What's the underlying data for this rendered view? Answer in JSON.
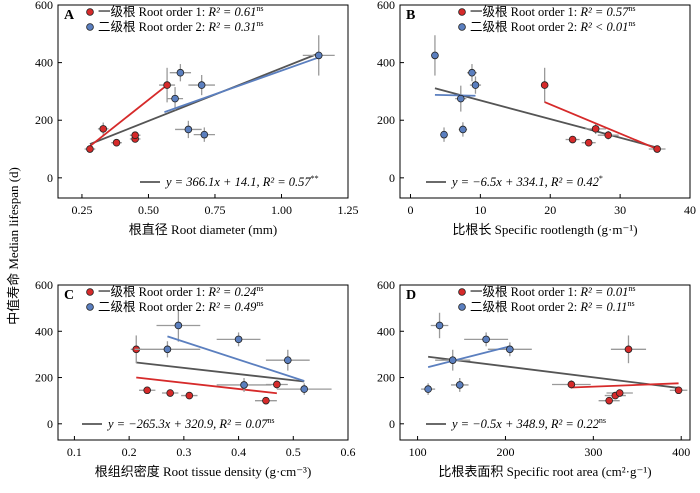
{
  "y_axis_label": "中值寿命 Median lifespan (d)",
  "chart_data": [
    {
      "type": "scatter",
      "panel": "A",
      "xlabel": "根直径 Root diameter (mm)",
      "xlim": [
        0.16,
        1.25
      ],
      "ylim": [
        -70,
        600
      ],
      "xticks": [
        0.25,
        0.5,
        0.75,
        1.0,
        1.25
      ],
      "xtick_labels": [
        "0.25",
        "0.50",
        "0.75",
        "1.00",
        "1.25"
      ],
      "yticks": [
        0,
        200,
        400,
        600
      ],
      "legend": [
        {
          "series": "order1",
          "text": "一级根 Root order 1: ",
          "r2": "R² = 0.61",
          "sig": "ns"
        },
        {
          "series": "order2",
          "text": "二级根 Root order 2: ",
          "r2": "R² = 0.31",
          "sig": "ns"
        }
      ],
      "equation": {
        "text": "y = 366.1x + 14.1, R² = 0.57",
        "sig": "**"
      },
      "series": [
        {
          "name": "order1",
          "color": "#d62a2a",
          "points": [
            {
              "x": 0.28,
              "y": 100,
              "ex": 0.02,
              "ey": 8
            },
            {
              "x": 0.33,
              "y": 170,
              "ex": 0.02,
              "ey": 22
            },
            {
              "x": 0.38,
              "y": 122,
              "ex": 0.02,
              "ey": 12
            },
            {
              "x": 0.45,
              "y": 135,
              "ex": 0.02,
              "ey": 12
            },
            {
              "x": 0.45,
              "y": 148,
              "ex": 0.02,
              "ey": 12
            },
            {
              "x": 0.57,
              "y": 322,
              "ex": 0.03,
              "ey": 60
            }
          ],
          "line": [
            [
              0.28,
              110
            ],
            [
              0.57,
              322
            ]
          ]
        },
        {
          "name": "order2",
          "color": "#5b7fbf",
          "points": [
            {
              "x": 0.6,
              "y": 275,
              "ex": 0.03,
              "ey": 40
            },
            {
              "x": 0.62,
              "y": 365,
              "ex": 0.04,
              "ey": 30
            },
            {
              "x": 0.65,
              "y": 168,
              "ex": 0.05,
              "ey": 30
            },
            {
              "x": 0.7,
              "y": 322,
              "ex": 0.05,
              "ey": 35
            },
            {
              "x": 0.71,
              "y": 150,
              "ex": 0.04,
              "ey": 25
            },
            {
              "x": 1.14,
              "y": 425,
              "ex": 0.06,
              "ey": 70
            }
          ],
          "line": [
            [
              0.56,
              228
            ],
            [
              1.14,
              418
            ]
          ]
        }
      ],
      "overall_line": [
        [
          0.28,
          117
        ],
        [
          1.14,
          432
        ]
      ]
    },
    {
      "type": "scatter",
      "panel": "B",
      "xlabel": "比根长 Specific rootlength (g·m⁻¹)",
      "xlim": [
        -1.5,
        40
      ],
      "ylim": [
        -70,
        600
      ],
      "xticks": [
        0,
        10,
        20,
        30,
        40
      ],
      "xtick_labels": [
        "0",
        "10",
        "20",
        "30",
        "40"
      ],
      "yticks": [
        0,
        200,
        400,
        600
      ],
      "legend": [
        {
          "series": "order1",
          "text": "一级根 Root order 1: ",
          "r2": "R² = 0.57",
          "sig": "ns"
        },
        {
          "series": "order2",
          "text": "二级根 Root order 2: ",
          "r2": "R² < 0.01",
          "sig": "ns"
        }
      ],
      "equation": {
        "text": "y = −6.5x + 334.1, R² = 0.42",
        "sig": "*"
      },
      "series": [
        {
          "name": "order1",
          "color": "#d62a2a",
          "points": [
            {
              "x": 19.2,
              "y": 322,
              "ex": 0.5,
              "ey": 60
            },
            {
              "x": 23.2,
              "y": 133,
              "ex": 1.0,
              "ey": 10
            },
            {
              "x": 25.5,
              "y": 122,
              "ex": 1.0,
              "ey": 10
            },
            {
              "x": 26.5,
              "y": 170,
              "ex": 1.5,
              "ey": 18
            },
            {
              "x": 28.3,
              "y": 148,
              "ex": 1.5,
              "ey": 15
            },
            {
              "x": 35.3,
              "y": 100,
              "ex": 1.2,
              "ey": 8
            }
          ],
          "line": [
            [
              19.2,
              263
            ],
            [
              35.3,
              100
            ]
          ]
        },
        {
          "name": "order2",
          "color": "#5b7fbf",
          "points": [
            {
              "x": 3.5,
              "y": 425,
              "ex": 0.5,
              "ey": 70
            },
            {
              "x": 4.8,
              "y": 150,
              "ex": 0.5,
              "ey": 25
            },
            {
              "x": 7.2,
              "y": 275,
              "ex": 0.8,
              "ey": 45
            },
            {
              "x": 7.5,
              "y": 168,
              "ex": 0.6,
              "ey": 25
            },
            {
              "x": 8.8,
              "y": 365,
              "ex": 0.7,
              "ey": 30
            },
            {
              "x": 9.3,
              "y": 322,
              "ex": 0.8,
              "ey": 30
            }
          ],
          "line": [
            [
              3.5,
              288
            ],
            [
              9.3,
              285
            ]
          ]
        }
      ],
      "overall_line": [
        [
          3.5,
          311
        ],
        [
          35.3,
          105
        ]
      ]
    },
    {
      "type": "scatter",
      "panel": "C",
      "xlabel": "根组织密度 Root tissue density (g·cm⁻³)",
      "xlim": [
        0.07,
        0.6
      ],
      "ylim": [
        -70,
        600
      ],
      "xticks": [
        0.1,
        0.2,
        0.3,
        0.4,
        0.5,
        0.6
      ],
      "xtick_labels": [
        "0.1",
        "0.2",
        "0.3",
        "0.4",
        "0.5",
        "0.6"
      ],
      "yticks": [
        0,
        200,
        400,
        600
      ],
      "legend": [
        {
          "series": "order1",
          "text": "一级根 Root order 1: ",
          "r2": "R² = 0.24",
          "sig": "ns"
        },
        {
          "series": "order2",
          "text": "二级根 Root order 2: ",
          "r2": "R² = 0.49",
          "sig": "ns"
        }
      ],
      "equation": {
        "text": "y = −265.3x + 320.9, R² = 0.07",
        "sig": "ns"
      },
      "series": [
        {
          "name": "order1",
          "color": "#d62a2a",
          "points": [
            {
              "x": 0.213,
              "y": 322,
              "ex": 0.01,
              "ey": 60
            },
            {
              "x": 0.233,
              "y": 145,
              "ex": 0.015,
              "ey": 15
            },
            {
              "x": 0.275,
              "y": 133,
              "ex": 0.015,
              "ey": 10
            },
            {
              "x": 0.31,
              "y": 122,
              "ex": 0.015,
              "ey": 10
            },
            {
              "x": 0.45,
              "y": 100,
              "ex": 0.02,
              "ey": 8
            },
            {
              "x": 0.47,
              "y": 170,
              "ex": 0.02,
              "ey": 18
            }
          ],
          "line": [
            [
              0.213,
              200
            ],
            [
              0.47,
              132
            ]
          ]
        },
        {
          "name": "order2",
          "color": "#5b7fbf",
          "points": [
            {
              "x": 0.27,
              "y": 322,
              "ex": 0.06,
              "ey": 35
            },
            {
              "x": 0.29,
              "y": 425,
              "ex": 0.04,
              "ey": 70
            },
            {
              "x": 0.4,
              "y": 365,
              "ex": 0.04,
              "ey": 30
            },
            {
              "x": 0.41,
              "y": 168,
              "ex": 0.05,
              "ey": 30
            },
            {
              "x": 0.49,
              "y": 275,
              "ex": 0.04,
              "ey": 45
            },
            {
              "x": 0.52,
              "y": 150,
              "ex": 0.05,
              "ey": 25
            }
          ],
          "line": [
            [
              0.27,
              378
            ],
            [
              0.52,
              185
            ]
          ]
        }
      ],
      "overall_line": [
        [
          0.213,
          265
        ],
        [
          0.52,
          183
        ]
      ]
    },
    {
      "type": "scatter",
      "panel": "D",
      "xlabel": "比根表面积 Specific root area (cm²·g⁻¹)",
      "xlim": [
        80,
        410
      ],
      "ylim": [
        -70,
        600
      ],
      "xticks": [
        100,
        200,
        300,
        400
      ],
      "xtick_labels": [
        "100",
        "200",
        "300",
        "400"
      ],
      "yticks": [
        0,
        200,
        400,
        600
      ],
      "legend": [
        {
          "series": "order1",
          "text": "一级根 Root order 1: ",
          "r2": "R² = 0.01",
          "sig": "ns"
        },
        {
          "series": "order2",
          "text": "二级根 Root order 2: ",
          "r2": "R² = 0.11",
          "sig": "ns"
        }
      ],
      "equation": {
        "text": "y = −0.5x + 348.9, R² = 0.22",
        "sig": "ns"
      },
      "series": [
        {
          "name": "order1",
          "color": "#d62a2a",
          "points": [
            {
              "x": 275,
              "y": 170,
              "ex": 22,
              "ey": 18
            },
            {
              "x": 318,
              "y": 100,
              "ex": 12,
              "ey": 8
            },
            {
              "x": 325,
              "y": 122,
              "ex": 12,
              "ey": 10
            },
            {
              "x": 330,
              "y": 133,
              "ex": 15,
              "ey": 10
            },
            {
              "x": 340,
              "y": 322,
              "ex": 20,
              "ey": 60
            },
            {
              "x": 397,
              "y": 145,
              "ex": 10,
              "ey": 12
            }
          ],
          "line": [
            [
              275,
              157
            ],
            [
              397,
              175
            ]
          ]
        },
        {
          "name": "order2",
          "color": "#5b7fbf",
          "points": [
            {
              "x": 112,
              "y": 150,
              "ex": 8,
              "ey": 25
            },
            {
              "x": 125,
              "y": 425,
              "ex": 10,
              "ey": 55
            },
            {
              "x": 140,
              "y": 275,
              "ex": 20,
              "ey": 45
            },
            {
              "x": 148,
              "y": 168,
              "ex": 10,
              "ey": 30
            },
            {
              "x": 178,
              "y": 365,
              "ex": 25,
              "ey": 30
            },
            {
              "x": 205,
              "y": 322,
              "ex": 25,
              "ey": 30
            }
          ],
          "line": [
            [
              112,
              245
            ],
            [
              205,
              335
            ]
          ]
        }
      ],
      "overall_line": [
        [
          112,
          290
        ],
        [
          397,
          155
        ]
      ]
    }
  ]
}
